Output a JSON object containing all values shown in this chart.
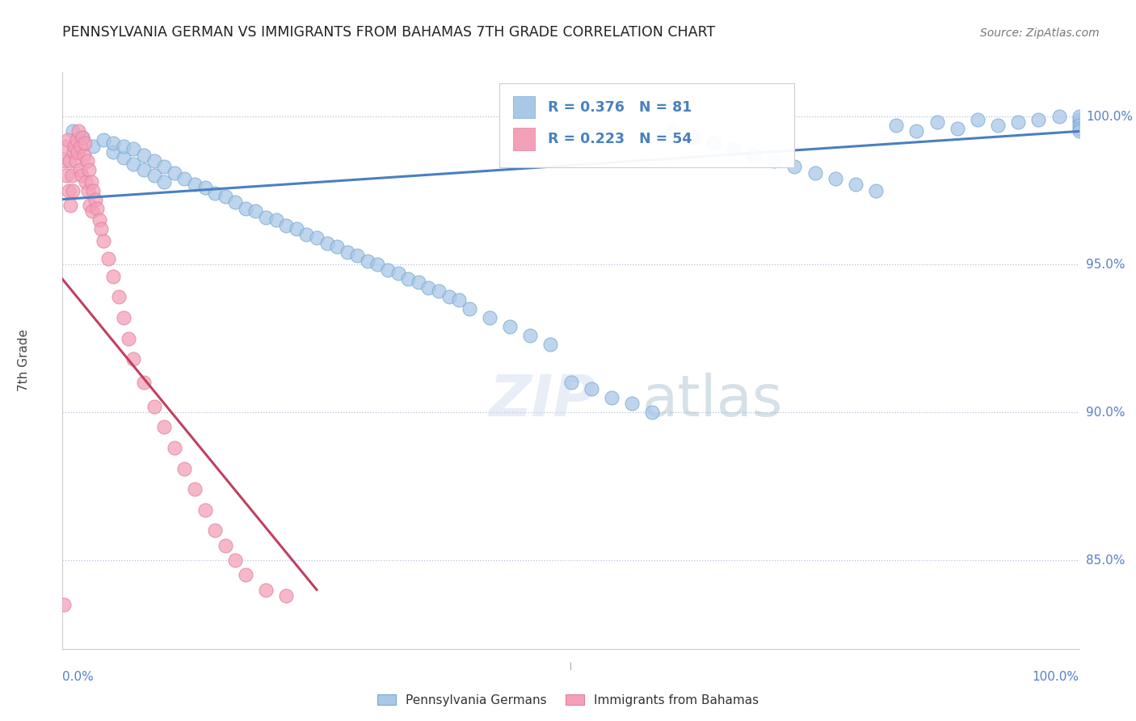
{
  "title": "PENNSYLVANIA GERMAN VS IMMIGRANTS FROM BAHAMAS 7TH GRADE CORRELATION CHART",
  "source": "Source: ZipAtlas.com",
  "ylabel": "7th Grade",
  "xlim": [
    0.0,
    100.0
  ],
  "ylim": [
    82.0,
    101.5
  ],
  "blue_R": 0.376,
  "blue_N": 81,
  "pink_R": 0.223,
  "pink_N": 54,
  "blue_color": "#a8c8e8",
  "pink_color": "#f4a0b8",
  "blue_edge_color": "#7aaad0",
  "pink_edge_color": "#e080a0",
  "blue_line_color": "#4a7fc1",
  "pink_line_color": "#c04060",
  "legend_blue_label": "Pennsylvania Germans",
  "legend_pink_label": "Immigrants from Bahamas",
  "watermark_zip": "ZIP",
  "watermark_atlas": "atlas",
  "background_color": "#ffffff",
  "ytick_vals": [
    85.0,
    90.0,
    95.0,
    100.0
  ],
  "ytick_labels": [
    "85.0%",
    "90.0%",
    "95.0%",
    "100.0%"
  ],
  "blue_x": [
    1,
    2,
    3,
    4,
    5,
    5,
    6,
    6,
    7,
    7,
    8,
    8,
    9,
    9,
    10,
    10,
    11,
    12,
    13,
    14,
    15,
    16,
    17,
    18,
    19,
    20,
    21,
    22,
    23,
    24,
    25,
    26,
    27,
    28,
    29,
    30,
    31,
    32,
    33,
    34,
    35,
    36,
    37,
    38,
    39,
    40,
    42,
    44,
    46,
    48,
    50,
    52,
    54,
    56,
    58,
    60,
    62,
    64,
    66,
    68,
    70,
    72,
    74,
    76,
    78,
    80,
    82,
    84,
    86,
    88,
    90,
    92,
    94,
    96,
    98,
    100,
    100,
    100,
    100,
    100,
    100
  ],
  "blue_y": [
    99.5,
    99.3,
    99.0,
    99.2,
    98.8,
    99.1,
    98.6,
    99.0,
    98.4,
    98.9,
    98.2,
    98.7,
    98.0,
    98.5,
    97.8,
    98.3,
    98.1,
    97.9,
    97.7,
    97.6,
    97.4,
    97.3,
    97.1,
    96.9,
    96.8,
    96.6,
    96.5,
    96.3,
    96.2,
    96.0,
    95.9,
    95.7,
    95.6,
    95.4,
    95.3,
    95.1,
    95.0,
    94.8,
    94.7,
    94.5,
    94.4,
    94.2,
    94.1,
    93.9,
    93.8,
    93.5,
    93.2,
    92.9,
    92.6,
    92.3,
    91.0,
    90.8,
    90.5,
    90.3,
    90.0,
    99.5,
    99.3,
    99.1,
    98.9,
    98.7,
    98.5,
    98.3,
    98.1,
    97.9,
    97.7,
    97.5,
    99.7,
    99.5,
    99.8,
    99.6,
    99.9,
    99.7,
    99.8,
    99.9,
    100.0,
    99.8,
    99.9,
    100.0,
    99.7,
    99.6,
    99.5
  ],
  "pink_x": [
    0.1,
    0.2,
    0.3,
    0.4,
    0.5,
    0.6,
    0.7,
    0.8,
    0.9,
    1.0,
    1.1,
    1.2,
    1.3,
    1.4,
    1.5,
    1.6,
    1.7,
    1.8,
    1.9,
    2.0,
    2.1,
    2.2,
    2.3,
    2.4,
    2.5,
    2.6,
    2.7,
    2.8,
    2.9,
    3.0,
    3.2,
    3.4,
    3.6,
    3.8,
    4.0,
    4.5,
    5.0,
    5.5,
    6.0,
    6.5,
    7.0,
    8.0,
    9.0,
    10.0,
    11.0,
    12.0,
    13.0,
    14.0,
    15.0,
    16.0,
    17.0,
    18.0,
    20.0,
    22.0
  ],
  "pink_y": [
    83.5,
    98.5,
    99.0,
    98.0,
    99.2,
    97.5,
    98.5,
    97.0,
    98.0,
    97.5,
    98.8,
    99.0,
    98.5,
    99.2,
    98.8,
    99.5,
    98.2,
    99.0,
    98.0,
    99.3,
    98.7,
    99.1,
    97.8,
    98.5,
    97.5,
    98.2,
    97.0,
    97.8,
    96.8,
    97.5,
    97.2,
    96.9,
    96.5,
    96.2,
    95.8,
    95.2,
    94.6,
    93.9,
    93.2,
    92.5,
    91.8,
    91.0,
    90.2,
    89.5,
    88.8,
    88.1,
    87.4,
    86.7,
    86.0,
    85.5,
    85.0,
    84.5,
    84.0,
    83.8
  ],
  "blue_trend_x": [
    0,
    100
  ],
  "blue_trend_y_start": 97.2,
  "blue_trend_y_end": 99.5,
  "pink_trend_x": [
    0,
    25
  ],
  "pink_trend_y_start": 94.5,
  "pink_trend_y_end": 84.0
}
